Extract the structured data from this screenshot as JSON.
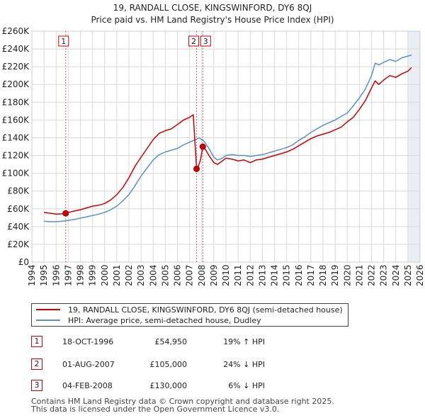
{
  "title_line1": "19, RANDALL CLOSE, KINGSWINFORD, DY6 8QJ",
  "title_line2": "Price paid vs. HM Land Registry's House Price Index (HPI)",
  "chart_data": {
    "type": "line",
    "title": "19, RANDALL CLOSE, KINGSWINFORD, DY6 8QJ — Price paid vs. HM Land Registry's House Price Index (HPI)",
    "xlim": [
      1994,
      2026
    ],
    "ylim": [
      0,
      260000
    ],
    "x_ticks": [
      "1994",
      "1995",
      "1996",
      "1997",
      "1998",
      "1999",
      "2000",
      "2001",
      "2002",
      "2003",
      "2004",
      "2005",
      "2006",
      "2007",
      "2008",
      "2009",
      "2010",
      "2011",
      "2012",
      "2013",
      "2014",
      "2015",
      "2016",
      "2017",
      "2018",
      "2019",
      "2020",
      "2021",
      "2022",
      "2023",
      "2024",
      "2025",
      "2026"
    ],
    "y_ticks": [
      {
        "value": 0,
        "label": "£0"
      },
      {
        "value": 20000,
        "label": "£20K"
      },
      {
        "value": 40000,
        "label": "£40K"
      },
      {
        "value": 60000,
        "label": "£60K"
      },
      {
        "value": 80000,
        "label": "£80K"
      },
      {
        "value": 100000,
        "label": "£100K"
      },
      {
        "value": 120000,
        "label": "£120K"
      },
      {
        "value": 140000,
        "label": "£140K"
      },
      {
        "value": 160000,
        "label": "£160K"
      },
      {
        "value": 180000,
        "label": "£180K"
      },
      {
        "value": 200000,
        "label": "£200K"
      },
      {
        "value": 220000,
        "label": "£220K"
      },
      {
        "value": 240000,
        "label": "£240K"
      },
      {
        "value": 260000,
        "label": "£260K"
      }
    ],
    "grid": true,
    "future_shaded_from": 2025.0,
    "series": [
      {
        "name": "19, RANDALL CLOSE, KINGSWINFORD, DY6 8QJ (semi-detached house)",
        "color": "#cc0000",
        "x": [
          1995.0,
          1995.5,
          1996.0,
          1996.5,
          1996.79,
          1997.0,
          1997.5,
          1998.0,
          1998.5,
          1999.0,
          1999.5,
          2000.0,
          2000.5,
          2001.0,
          2001.5,
          2002.0,
          2002.5,
          2003.0,
          2003.5,
          2004.0,
          2004.5,
          2005.0,
          2005.5,
          2006.0,
          2006.5,
          2007.0,
          2007.3,
          2007.58,
          2007.7,
          2007.9,
          2008.09,
          2008.3,
          2008.6,
          2009.0,
          2009.3,
          2009.7,
          2010.0,
          2010.5,
          2011.0,
          2011.5,
          2012.0,
          2012.5,
          2013.0,
          2013.5,
          2014.0,
          2014.5,
          2015.0,
          2015.5,
          2016.0,
          2016.5,
          2017.0,
          2017.5,
          2018.0,
          2018.5,
          2019.0,
          2019.5,
          2020.0,
          2020.5,
          2021.0,
          2021.5,
          2022.0,
          2022.3,
          2022.6,
          2023.0,
          2023.5,
          2024.0,
          2024.5,
          2025.0,
          2025.3
        ],
        "values": [
          56000,
          55000,
          54000,
          54500,
          54950,
          56000,
          57500,
          59000,
          61000,
          63000,
          64000,
          66000,
          70000,
          76000,
          84000,
          95000,
          108000,
          118000,
          128000,
          138000,
          145000,
          148000,
          150000,
          155000,
          160000,
          163000,
          166000,
          105000,
          107000,
          115000,
          130000,
          127000,
          120000,
          112000,
          110000,
          114000,
          117000,
          116000,
          114000,
          115000,
          112000,
          115000,
          116000,
          118000,
          120000,
          122000,
          124000,
          127000,
          131000,
          135000,
          139000,
          142000,
          144000,
          146000,
          149000,
          152000,
          158000,
          163000,
          172000,
          182000,
          196000,
          204000,
          200000,
          205000,
          210000,
          208000,
          212000,
          215000,
          219000
        ]
      },
      {
        "name": "HPI: Average price, semi-detached house, Dudley",
        "color": "#5b8ec9",
        "x": [
          1995.0,
          1995.5,
          1996.0,
          1996.5,
          1997.0,
          1997.5,
          1998.0,
          1998.5,
          1999.0,
          1999.5,
          2000.0,
          2000.5,
          2001.0,
          2001.5,
          2002.0,
          2002.5,
          2003.0,
          2003.5,
          2004.0,
          2004.5,
          2005.0,
          2005.5,
          2006.0,
          2006.5,
          2007.0,
          2007.5,
          2007.8,
          2008.2,
          2008.6,
          2009.0,
          2009.3,
          2009.7,
          2010.0,
          2010.5,
          2011.0,
          2011.5,
          2012.0,
          2012.5,
          2013.0,
          2013.5,
          2014.0,
          2014.5,
          2015.0,
          2015.5,
          2016.0,
          2016.5,
          2017.0,
          2017.5,
          2018.0,
          2018.5,
          2019.0,
          2019.5,
          2020.0,
          2020.5,
          2021.0,
          2021.5,
          2022.0,
          2022.3,
          2022.6,
          2023.0,
          2023.5,
          2024.0,
          2024.5,
          2025.0,
          2025.3
        ],
        "values": [
          46000,
          45500,
          45500,
          46000,
          47000,
          48000,
          49500,
          51000,
          52500,
          54000,
          56000,
          59000,
          63000,
          69000,
          76000,
          86000,
          97000,
          106000,
          115000,
          121000,
          124000,
          126000,
          128000,
          132000,
          135000,
          138000,
          140000,
          136000,
          128000,
          118000,
          115000,
          117000,
          120000,
          121000,
          120000,
          120000,
          119000,
          120000,
          121000,
          123000,
          125000,
          127000,
          129000,
          132000,
          137000,
          141000,
          146000,
          150000,
          154000,
          157000,
          160000,
          164000,
          168000,
          176000,
          185000,
          195000,
          210000,
          224000,
          222000,
          225000,
          228000,
          226000,
          230000,
          232000,
          233000
        ]
      }
    ],
    "sales": [
      {
        "label": "1",
        "x": 1996.79,
        "price": 54950
      },
      {
        "label": "2",
        "x": 2007.58,
        "price": 105000
      },
      {
        "label": "3",
        "x": 2008.09,
        "price": 130000
      }
    ]
  },
  "legend": [
    {
      "label": "19, RANDALL CLOSE, KINGSWINFORD, DY6 8QJ (semi-detached house)",
      "color": "#cc0000"
    },
    {
      "label": "HPI: Average price, semi-detached house, Dudley",
      "color": "#5b8ec9"
    }
  ],
  "sales_table": [
    {
      "num": "1",
      "date": "18-OCT-1996",
      "price": "£54,950",
      "hpi": "19% ↑ HPI"
    },
    {
      "num": "2",
      "date": "01-AUG-2007",
      "price": "£105,000",
      "hpi": "24% ↓ HPI"
    },
    {
      "num": "3",
      "date": "04-FEB-2008",
      "price": "£130,000",
      "hpi": "6% ↓ HPI"
    }
  ],
  "footer_line1": "Contains HM Land Registry data © Crown copyright and database right 2025.",
  "footer_line2": "This data is licensed under the Open Government Licence v3.0."
}
